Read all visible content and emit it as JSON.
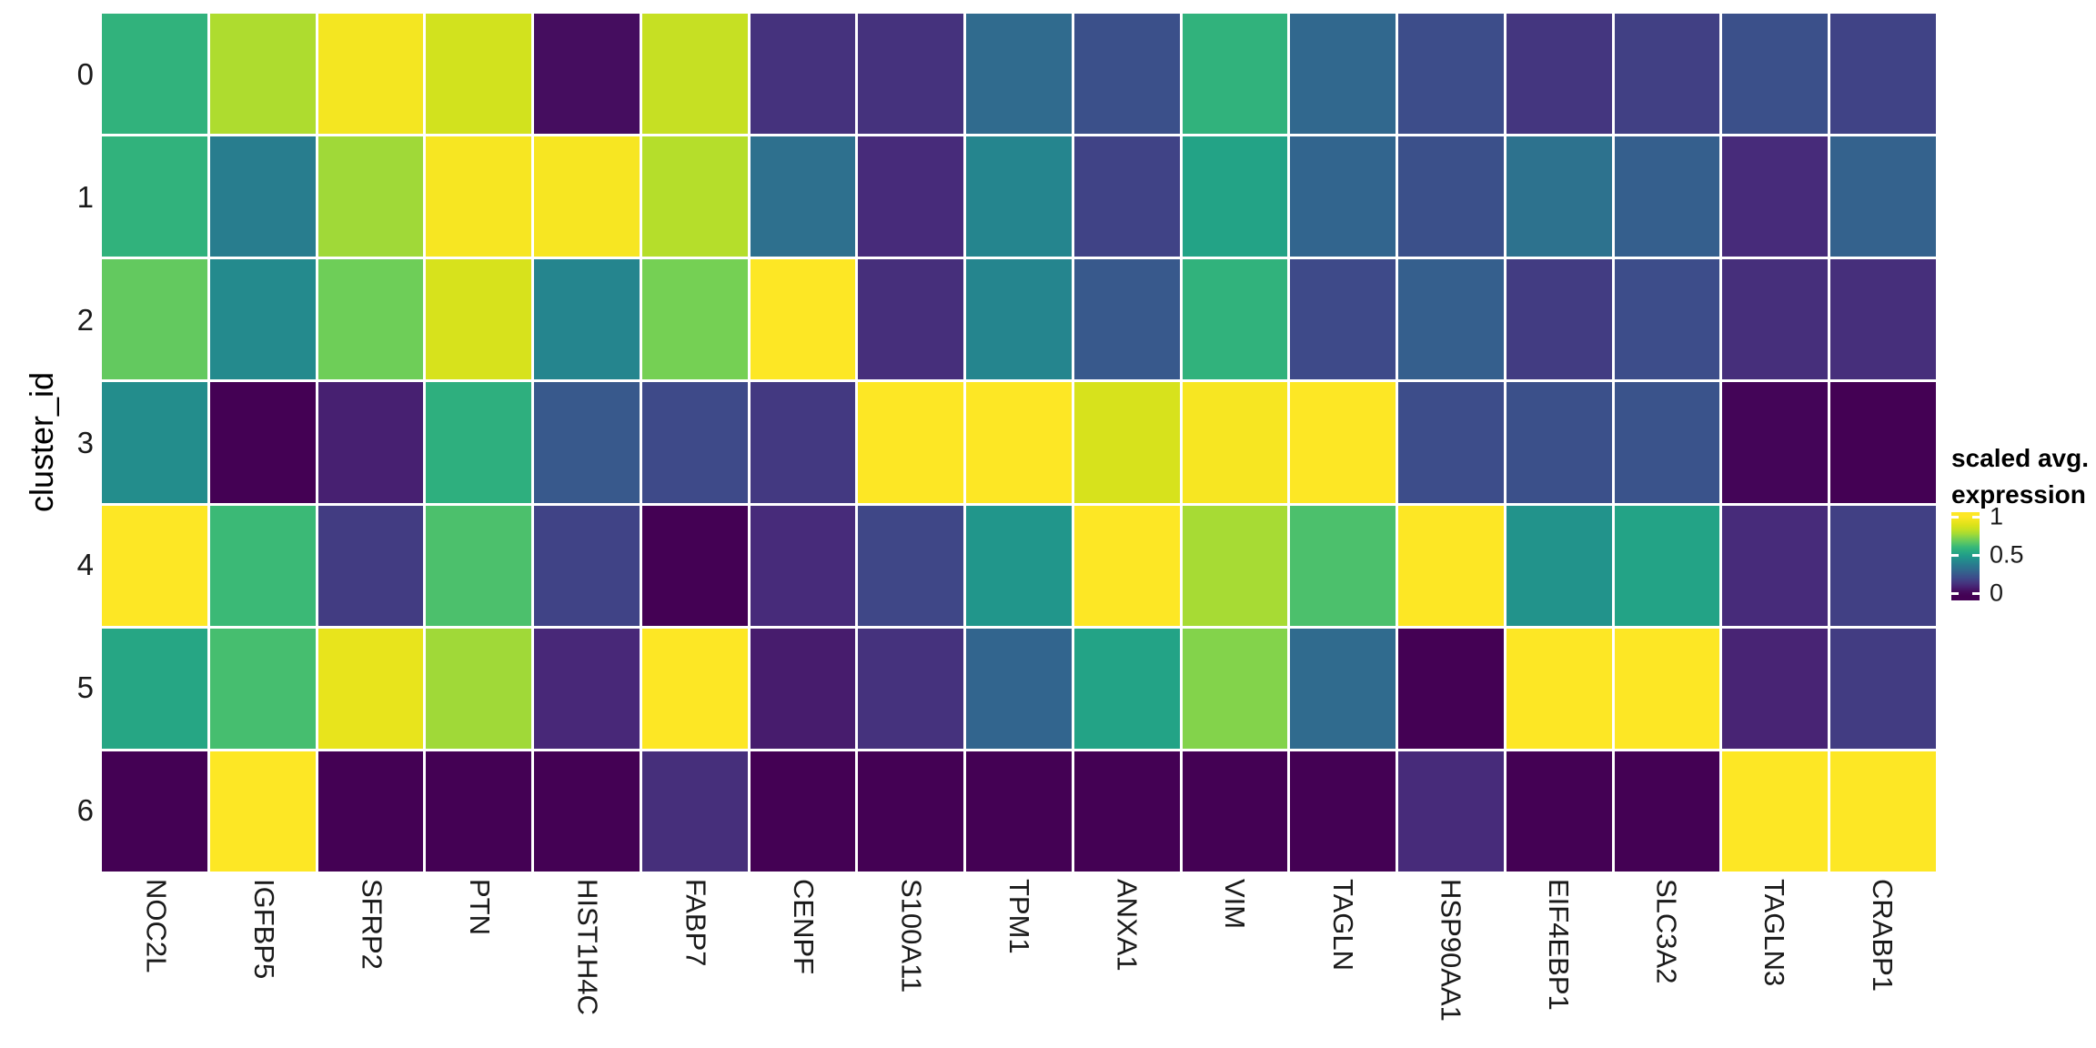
{
  "figure": {
    "background": "#ffffff"
  },
  "y_axis": {
    "title": "cluster_id",
    "tick_labels": [
      "0",
      "1",
      "2",
      "3",
      "4",
      "5",
      "6"
    ]
  },
  "x_axis": {
    "tick_labels": [
      "NOC2L",
      "IGFBP5",
      "SFRP2",
      "PTN",
      "HIST1H4C",
      "FABP7",
      "CENPF",
      "S100A11",
      "TPM1",
      "ANXA1",
      "VIM",
      "TAGLN",
      "HSP90AA1",
      "EIF4EBP1",
      "SLC3A2",
      "TAGLN3",
      "CRABP1"
    ]
  },
  "legend": {
    "title_line1": "scaled avg.",
    "title_line2": "expression",
    "tick_labels": [
      "1",
      "0.5",
      "0"
    ],
    "tick_values": [
      1,
      0.5,
      0
    ]
  },
  "chart_data": {
    "type": "heatmap",
    "title": "",
    "xlabel": "",
    "ylabel": "cluster_id",
    "x_categories": [
      "NOC2L",
      "IGFBP5",
      "SFRP2",
      "PTN",
      "HIST1H4C",
      "FABP7",
      "CENPF",
      "S100A11",
      "TPM1",
      "ANXA1",
      "VIM",
      "TAGLN",
      "HSP90AA1",
      "EIF4EBP1",
      "SLC3A2",
      "TAGLN3",
      "CRABP1"
    ],
    "y_categories": [
      "0",
      "1",
      "2",
      "3",
      "4",
      "5",
      "6"
    ],
    "values": [
      [
        0.58,
        0.79,
        0.97,
        0.87,
        0.03,
        0.84,
        0.13,
        0.13,
        0.31,
        0.22,
        0.58,
        0.3,
        0.21,
        0.14,
        0.17,
        0.22,
        0.18
      ],
      [
        0.58,
        0.38,
        0.77,
        0.98,
        0.98,
        0.8,
        0.33,
        0.11,
        0.41,
        0.18,
        0.52,
        0.29,
        0.22,
        0.34,
        0.27,
        0.11,
        0.28
      ],
      [
        0.68,
        0.43,
        0.7,
        0.88,
        0.41,
        0.71,
        1.0,
        0.12,
        0.41,
        0.25,
        0.58,
        0.2,
        0.27,
        0.16,
        0.21,
        0.12,
        0.12
      ],
      [
        0.44,
        0.0,
        0.08,
        0.57,
        0.25,
        0.2,
        0.15,
        1.0,
        1.0,
        0.88,
        0.98,
        1.0,
        0.21,
        0.22,
        0.23,
        0.01,
        0.0
      ],
      [
        1.0,
        0.61,
        0.16,
        0.64,
        0.18,
        0.0,
        0.11,
        0.19,
        0.47,
        1.0,
        0.78,
        0.64,
        1.0,
        0.46,
        0.52,
        0.11,
        0.17
      ],
      [
        0.53,
        0.63,
        0.93,
        0.77,
        0.1,
        1.0,
        0.07,
        0.13,
        0.29,
        0.52,
        0.73,
        0.31,
        0.0,
        1.0,
        1.0,
        0.09,
        0.16
      ],
      [
        0.0,
        1.0,
        0.0,
        0.0,
        0.0,
        0.12,
        0.0,
        0.0,
        0.0,
        0.0,
        0.0,
        0.0,
        0.11,
        0.0,
        0.0,
        1.0,
        1.0
      ]
    ],
    "color_scale": {
      "name": "viridis",
      "legend_title": "scaled avg. expression",
      "domain": [
        0,
        1
      ],
      "stops": [
        "#440154",
        "#482878",
        "#3e4a89",
        "#31688e",
        "#26828e",
        "#1f9e89",
        "#35b779",
        "#6ece58",
        "#b5de2b",
        "#dfe318",
        "#fde725"
      ]
    },
    "grid": {
      "gap_color": "#ffffff",
      "legend_position": "right"
    }
  }
}
